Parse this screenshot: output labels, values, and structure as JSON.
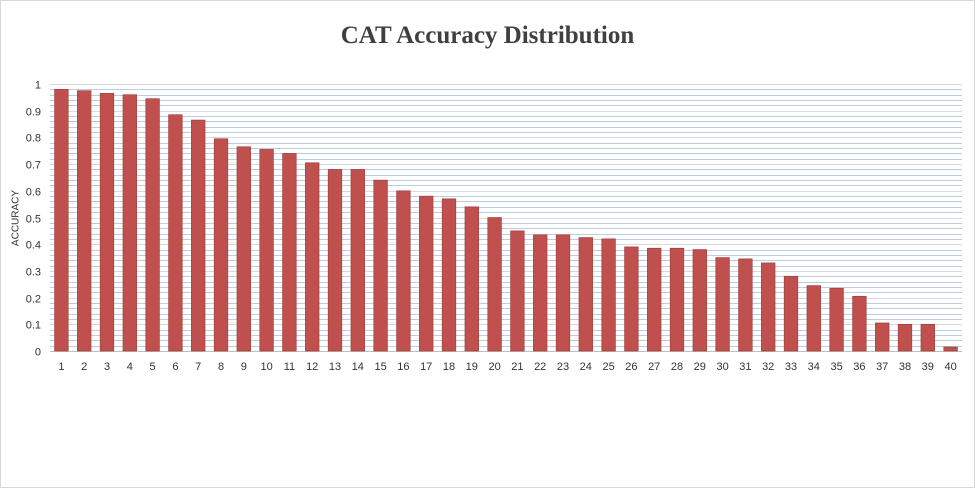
{
  "chart_data": {
    "type": "bar",
    "title": "CAT Accuracy Distribution",
    "xlabel": "",
    "ylabel": "ACCURACY",
    "categories": [
      "1",
      "2",
      "3",
      "4",
      "5",
      "6",
      "7",
      "8",
      "9",
      "10",
      "11",
      "12",
      "13",
      "14",
      "15",
      "16",
      "17",
      "18",
      "19",
      "20",
      "21",
      "22",
      "23",
      "24",
      "25",
      "26",
      "27",
      "28",
      "29",
      "30",
      "31",
      "32",
      "33",
      "34",
      "35",
      "36",
      "37",
      "38",
      "39",
      "40"
    ],
    "values": [
      0.98,
      0.975,
      0.965,
      0.96,
      0.945,
      0.885,
      0.865,
      0.795,
      0.765,
      0.755,
      0.74,
      0.705,
      0.68,
      0.68,
      0.64,
      0.6,
      0.58,
      0.57,
      0.54,
      0.5,
      0.45,
      0.435,
      0.435,
      0.425,
      0.42,
      0.39,
      0.385,
      0.385,
      0.38,
      0.35,
      0.345,
      0.33,
      0.28,
      0.245,
      0.235,
      0.205,
      0.105,
      0.1,
      0.1,
      0.015
    ],
    "ylim": [
      0,
      1
    ],
    "yticks": [
      "0",
      "0.1",
      "0.2",
      "0.3",
      "0.4",
      "0.5",
      "0.6",
      "0.7",
      "0.8",
      "0.9",
      "1"
    ],
    "grid": true,
    "legend": "none",
    "colors": {
      "bar": "#c0504d",
      "bar_edge": "#9b3a37",
      "grid_major": "#d9d9d9",
      "grid_minor": "#b9cde5"
    }
  }
}
